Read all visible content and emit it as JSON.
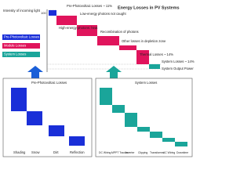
{
  "title": "Energy Losses in PV Systems",
  "axis": {
    "label": "Intensity of incoming light",
    "top": "100"
  },
  "legend": [
    "Pre-Photovoltaic Losses",
    "Module Losses",
    "System Losses"
  ],
  "annotations": [
    "Pre-Photovoltaic Losses ~ 11%",
    "Low-energy photons not caught",
    "High-energy photons: heat",
    "Recombination of photons",
    "Other losses in depletion zone",
    "Thermal Losses ~ 14%",
    "System Losses ~ 14%",
    "System Output Power"
  ],
  "pre_panel": {
    "title": "Pre-Photovoltaic Losses",
    "categories": [
      "Shading",
      "Snow",
      "Dirt",
      "Reflection"
    ]
  },
  "system_panel": {
    "title": "System Losses",
    "categories": [
      "DC Wiring",
      "MPPT Tracker",
      "Inverter",
      "Clipping",
      "Transformer",
      "AC Wiring",
      "Downtime"
    ]
  }
}
